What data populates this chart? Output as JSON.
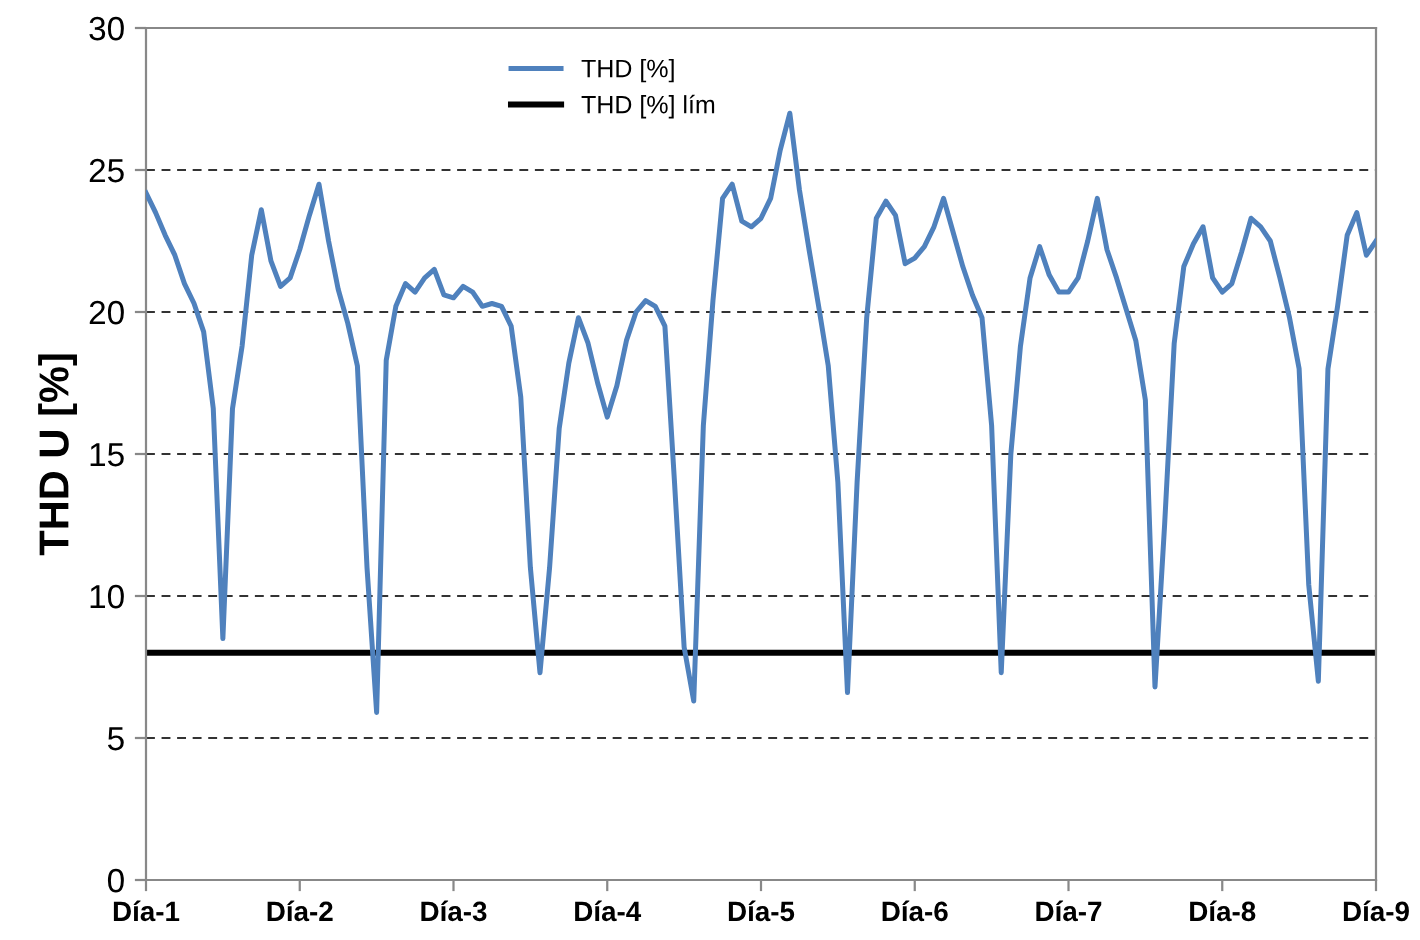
{
  "chart_data": {
    "type": "line",
    "ylabel": "THD U [%]",
    "categories": [
      "Día-1",
      null,
      null,
      null,
      null,
      null,
      null,
      null,
      null,
      null,
      null,
      null,
      null,
      null,
      null,
      null,
      "Día-2",
      null,
      null,
      null,
      null,
      null,
      null,
      null,
      null,
      null,
      null,
      null,
      null,
      null,
      null,
      null,
      "Día-3",
      null,
      null,
      null,
      null,
      null,
      null,
      null,
      null,
      null,
      null,
      null,
      null,
      null,
      null,
      null,
      "Día-4",
      null,
      null,
      null,
      null,
      null,
      null,
      null,
      null,
      null,
      null,
      null,
      null,
      null,
      null,
      null,
      "Día-5",
      null,
      null,
      null,
      null,
      null,
      null,
      null,
      null,
      null,
      null,
      null,
      null,
      null,
      null,
      null,
      "Día-6",
      null,
      null,
      null,
      null,
      null,
      null,
      null,
      null,
      null,
      null,
      null,
      null,
      null,
      null,
      null,
      "Día-7",
      null,
      null,
      null,
      null,
      null,
      null,
      null,
      null,
      null,
      null,
      null,
      null,
      null,
      null,
      null,
      "Día-8",
      null,
      null,
      null,
      null,
      null,
      null,
      null,
      null,
      null,
      null,
      null,
      null,
      null,
      null,
      null,
      "Día-9"
    ],
    "ylim": [
      0,
      30
    ],
    "yticks": [
      0,
      5,
      10,
      15,
      20,
      25,
      30
    ],
    "grid": "y",
    "legend": "top",
    "series": [
      {
        "name": "THD [%]",
        "color": "#4f81bd",
        "values": [
          24.2,
          23.5,
          22.7,
          22.0,
          21.0,
          20.3,
          19.3,
          16.6,
          8.5,
          16.6,
          18.8,
          22.0,
          23.6,
          21.8,
          20.9,
          21.2,
          22.2,
          23.4,
          24.5,
          22.5,
          20.8,
          19.6,
          18.1,
          11.0,
          5.9,
          18.3,
          20.2,
          21.0,
          20.7,
          21.2,
          21.5,
          20.6,
          20.5,
          20.9,
          20.7,
          20.2,
          20.3,
          20.2,
          19.5,
          17.0,
          11.0,
          7.3,
          11.0,
          15.9,
          18.2,
          19.8,
          18.9,
          17.5,
          16.3,
          17.4,
          19.0,
          20.0,
          20.4,
          20.2,
          19.5,
          14.0,
          8.2,
          6.3,
          16.0,
          20.4,
          24.0,
          24.5,
          23.2,
          23.0,
          23.3,
          24.0,
          25.7,
          27.0,
          24.3,
          22.2,
          20.2,
          18.1,
          14.0,
          6.6,
          14.0,
          19.8,
          23.3,
          23.9,
          23.4,
          21.7,
          21.9,
          22.3,
          23.0,
          24.0,
          22.8,
          21.6,
          20.6,
          19.8,
          16.0,
          7.3,
          15.0,
          18.8,
          21.2,
          22.3,
          21.3,
          20.7,
          20.7,
          21.2,
          22.5,
          24.0,
          22.2,
          21.2,
          20.1,
          19.0,
          16.9,
          6.8,
          12.5,
          18.9,
          21.6,
          22.4,
          23.0,
          21.2,
          20.7,
          21.0,
          22.1,
          23.3,
          23.0,
          22.5,
          21.2,
          19.8,
          18.0,
          10.4,
          7.0,
          18.0,
          20.2,
          22.7,
          23.5,
          22.0,
          22.5
        ]
      }
    ],
    "ref_lines": [
      {
        "axis": "y",
        "value": 8,
        "label": "THD [%] lím",
        "color": "#000000",
        "line_style": "solid"
      }
    ]
  }
}
